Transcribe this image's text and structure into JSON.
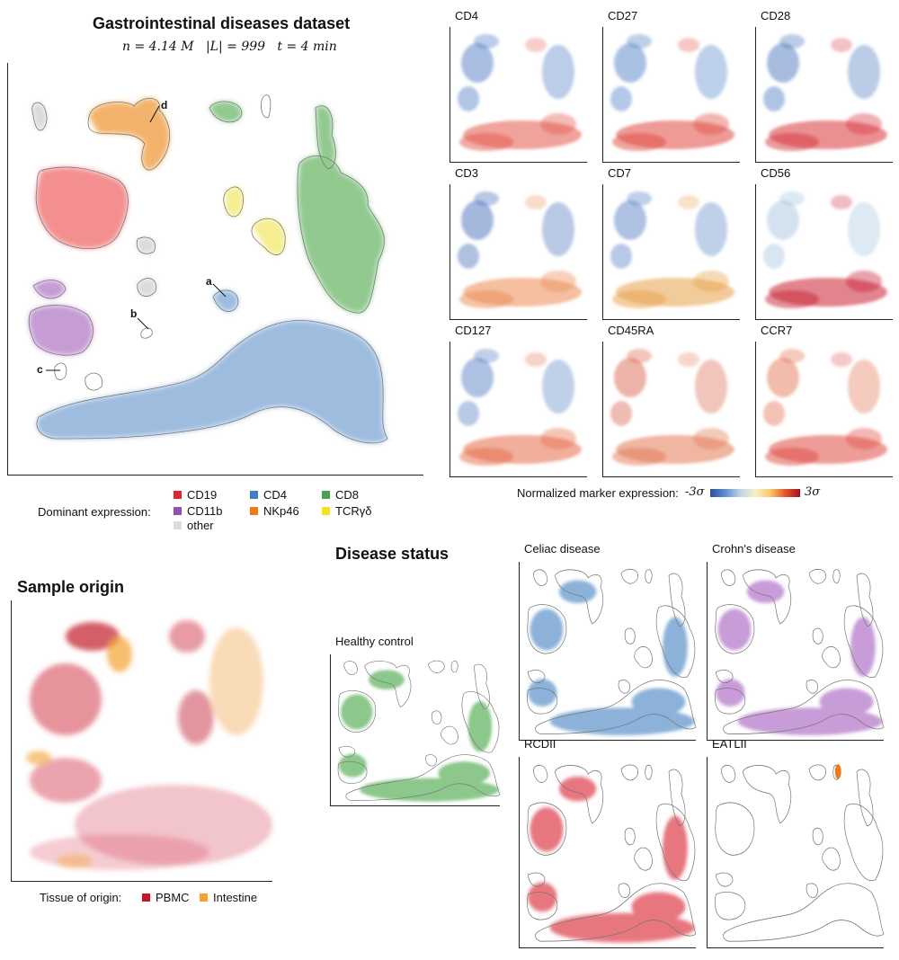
{
  "main": {
    "title": "Gastrointestinal diseases dataset",
    "subtitle": "n = 4.14 M   |L| = 999   t = 4 min",
    "annotations": [
      "a",
      "b",
      "c",
      "d"
    ]
  },
  "legend": {
    "title": "Dominant expression:",
    "items": [
      {
        "label": "CD19",
        "color": "#e0262b"
      },
      {
        "label": "CD4",
        "color": "#3f7fc0"
      },
      {
        "label": "CD8",
        "color": "#4aa24a"
      },
      {
        "label": "CD11b",
        "color": "#9a4fb0"
      },
      {
        "label": "NKp46",
        "color": "#ee7a18"
      },
      {
        "label": "TCRγδ",
        "color": "#f4e21c"
      },
      {
        "label": "other",
        "color": "#dcdcdc"
      }
    ]
  },
  "markers": {
    "panels": [
      "CD4",
      "CD27",
      "CD28",
      "CD3",
      "CD7",
      "CD56",
      "CD127",
      "CD45RA",
      "CCR7"
    ],
    "colorbar_label": "Normalized marker expression:",
    "colorbar_min": "-3σ",
    "colorbar_max": "3σ"
  },
  "sample_origin": {
    "title": "Sample origin",
    "legend_title": "Tissue of origin:",
    "items": [
      {
        "label": "PBMC",
        "color": "#c0172b"
      },
      {
        "label": "Intestine",
        "color": "#f4a233"
      }
    ]
  },
  "disease": {
    "title": "Disease status",
    "panels": [
      {
        "label": "Healthy control",
        "color": "#3fa33f"
      },
      {
        "label": "Celiac disease",
        "color": "#3f7fc0"
      },
      {
        "label": "Crohn's disease",
        "color": "#a35bbf"
      },
      {
        "label": "RCDII",
        "color": "#d81b2b"
      },
      {
        "label": "EATLII",
        "color": "#ffffff"
      }
    ]
  }
}
